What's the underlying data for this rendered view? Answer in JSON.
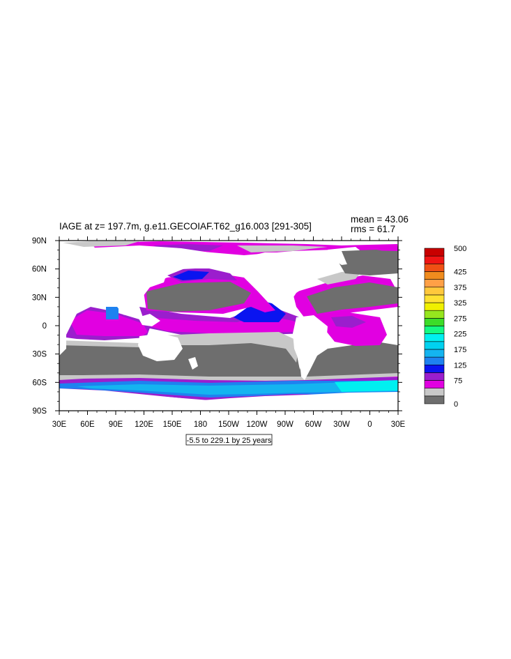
{
  "title": "IAGE at z= 197.7m, g.e11.GECOIAF.T62_g16.003 [291-305]",
  "stats": {
    "mean": "mean = 43.06",
    "rms": "rms = 61.7"
  },
  "range_label": "-5.5 to 229.1 by 25 years",
  "map": {
    "lon_ticks": [
      "30E",
      "60E",
      "90E",
      "120E",
      "150E",
      "180",
      "150W",
      "120W",
      "90W",
      "60W",
      "30W",
      "0",
      "30E"
    ],
    "lat_ticks": [
      "90N",
      "60N",
      "30N",
      "0",
      "30S",
      "60S",
      "90S"
    ],
    "land_color": "#ffffff",
    "low_value_color": "#6e6e6e"
  },
  "colorbar": {
    "colors": [
      "#6e6e6e",
      "#c8c8c8",
      "#e100e1",
      "#9b1ecd",
      "#0a14f0",
      "#1e82f0",
      "#14b4f0",
      "#00d2f0",
      "#00f0f0",
      "#14fa82",
      "#3cdc28",
      "#96e61e",
      "#f0f000",
      "#ffe132",
      "#ffc83c",
      "#ffa046",
      "#f08c1e",
      "#f05014",
      "#f01414",
      "#c80000"
    ],
    "labels": [
      {
        "index": 0,
        "text": "0"
      },
      {
        "index": 3,
        "text": "75"
      },
      {
        "index": 5,
        "text": "125"
      },
      {
        "index": 7,
        "text": "175"
      },
      {
        "index": 9,
        "text": "225"
      },
      {
        "index": 11,
        "text": "275"
      },
      {
        "index": 13,
        "text": "325"
      },
      {
        "index": 15,
        "text": "375"
      },
      {
        "index": 17,
        "text": "425"
      },
      {
        "index": 20,
        "text": "500"
      }
    ]
  }
}
